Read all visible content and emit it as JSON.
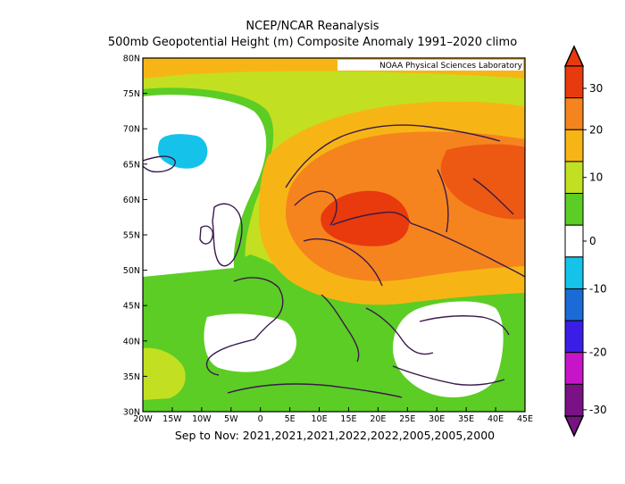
{
  "titles": {
    "line1": "NCEP/NCAR Reanalysis",
    "line2": "500mb Geopotential Height (m) Composite Anomaly 1991–2020 climo",
    "caption": "Sep to Nov: 2021,2021,2021,2022,2022,2005,2005,2000"
  },
  "credit": "NOAA Physical Sciences Laboratory",
  "axes": {
    "lon_labels": [
      "20W",
      "15W",
      "10W",
      "5W",
      "0",
      "5E",
      "10E",
      "15E",
      "20E",
      "25E",
      "30E",
      "35E",
      "40E",
      "45E"
    ],
    "lat_labels": [
      "30N",
      "35N",
      "40N",
      "45N",
      "50N",
      "55N",
      "60N",
      "65N",
      "70N",
      "75N",
      "80N"
    ]
  },
  "colorbar": {
    "tick_labels": [
      "30",
      "20",
      "10",
      "0",
      "-10",
      "-20",
      "-30"
    ],
    "levels": [
      {
        "range": "25 to 30+",
        "color": "#e83a0c"
      },
      {
        "range": "20 to 25",
        "color": "#f5841e"
      },
      {
        "range": "15 to 20",
        "color": "#f7b515"
      },
      {
        "range": "10 to 15",
        "color": "#c2e021"
      },
      {
        "range": "5 to 10",
        "color": "#5ccd25"
      },
      {
        "range": "-5 to 5",
        "color": "#ffffff"
      },
      {
        "range": "-10 to -5",
        "color": "#15c3ea"
      },
      {
        "range": "-15 to -10",
        "color": "#1a6bd6"
      },
      {
        "range": "-20 to -15",
        "color": "#3b1ee6"
      },
      {
        "range": "-25 to -20",
        "color": "#c615c8"
      },
      {
        "range": "-30 to -25",
        "color": "#7a1185"
      }
    ]
  },
  "colors": {
    "land_outline": "#3a1a4a",
    "frame": "#000000"
  }
}
